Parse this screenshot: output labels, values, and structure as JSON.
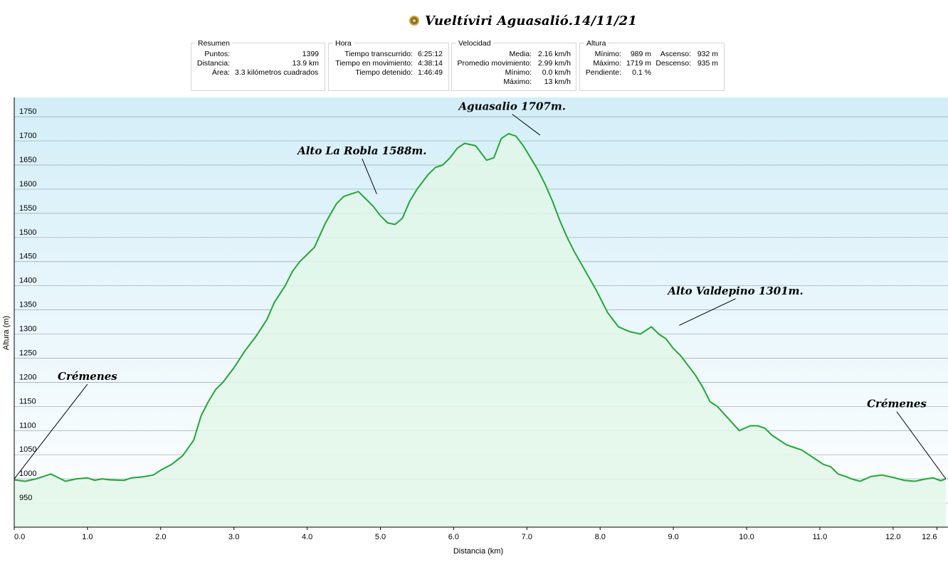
{
  "title": {
    "text": "Vueltíviri  Aguasalió.14/11/21",
    "icon": "track-icon"
  },
  "summary": {
    "resumen": {
      "legend": "Resumen",
      "puntos_label": "Puntos:",
      "puntos": "1399",
      "distancia_label": "Distancia:",
      "distancia": "13.9 km",
      "area_label": "Área:",
      "area": "3.3 kilómetros cuadrados"
    },
    "hora": {
      "legend": "Hora",
      "transcurrido_label": "Tiempo transcurrido:",
      "transcurrido": "6:25:12",
      "movimiento_label": "Tiempo en movimiento:",
      "movimiento": "4:38:14",
      "detenido_label": "Tiempo detenido:",
      "detenido": "1:46:49"
    },
    "velocidad": {
      "legend": "Velocidad",
      "media_label": "Media:",
      "media": "2.16 km/h",
      "promedio_label": "Promedio movimiento:",
      "promedio": "2.99 km/h",
      "minimo_label": "Mínimo:",
      "minimo": "0.0 km/h",
      "maximo_label": "Máximo:",
      "maximo": "13 km/h"
    },
    "altura": {
      "legend": "Altura",
      "minimo_label": "Mínimo:",
      "minimo": "989 m",
      "maximo_label": "Máximo:",
      "maximo": "1719 m",
      "pendiente_label": "Pendiente:",
      "pendiente": "0.1 %",
      "ascenso_label": "Ascenso:",
      "ascenso": "932 m",
      "descenso_label": "Descenso:",
      "descenso": "935 m"
    }
  },
  "chart_data": {
    "type": "area",
    "xlabel": "Distancia  (km)",
    "ylabel": "Altura (m)",
    "xlim": [
      0,
      12.75
    ],
    "ylim": [
      900,
      1790
    ],
    "xticks": [
      0.0,
      1.0,
      2.0,
      3.0,
      4.0,
      5.0,
      6.0,
      7.0,
      8.0,
      9.0,
      10.0,
      11.0,
      12.0,
      12.6
    ],
    "xtick_labels": [
      "0.0",
      "1.0",
      "2.0",
      "3.0",
      "4.0",
      "5.0",
      "6.0",
      "7.0",
      "8.0",
      "9.0",
      "10.0",
      "11.0",
      "12.0",
      "12.6"
    ],
    "yticks": [
      950,
      1000,
      1050,
      1100,
      1150,
      1200,
      1250,
      1300,
      1350,
      1400,
      1450,
      1500,
      1550,
      1600,
      1650,
      1700,
      1750
    ],
    "grid": true,
    "line_color": "#20a838",
    "fill_color": "#e2f7e7",
    "series": [
      {
        "x": [
          0.0,
          0.15,
          0.3,
          0.5,
          0.7,
          0.85,
          1.0,
          1.1,
          1.2,
          1.3,
          1.5,
          1.6,
          1.75,
          1.9,
          2.0,
          2.15,
          2.3,
          2.45,
          2.55,
          2.65,
          2.75,
          2.85,
          3.0,
          3.15,
          3.3,
          3.45,
          3.55,
          3.7,
          3.8,
          3.9,
          4.0,
          4.1,
          4.25,
          4.4,
          4.5,
          4.6,
          4.7,
          4.8,
          4.9,
          5.0,
          5.1,
          5.2,
          5.3,
          5.4,
          5.5,
          5.65,
          5.75,
          5.85,
          5.95,
          6.05,
          6.15,
          6.3,
          6.45,
          6.55,
          6.65,
          6.75,
          6.85,
          6.95,
          7.05,
          7.15,
          7.25,
          7.35,
          7.45,
          7.55,
          7.65,
          7.8,
          7.95,
          8.1,
          8.25,
          8.4,
          8.55,
          8.7,
          8.8,
          8.9,
          9.0,
          9.1,
          9.2,
          9.3,
          9.4,
          9.5,
          9.6,
          9.75,
          9.9,
          10.05,
          10.15,
          10.25,
          10.35,
          10.45,
          10.55,
          10.65,
          10.75,
          10.85,
          10.95,
          11.05,
          11.15,
          11.25,
          11.35,
          11.45,
          11.55,
          11.7,
          11.85,
          12.0,
          12.15,
          12.3,
          12.45,
          12.55,
          12.65,
          12.72
        ],
        "y": [
          998,
          995,
          1000,
          1010,
          995,
          1000,
          1002,
          997,
          1000,
          998,
          997,
          1002,
          1004,
          1008,
          1018,
          1030,
          1048,
          1080,
          1130,
          1160,
          1185,
          1200,
          1230,
          1265,
          1295,
          1330,
          1365,
          1400,
          1430,
          1450,
          1465,
          1480,
          1530,
          1570,
          1585,
          1590,
          1595,
          1580,
          1565,
          1545,
          1530,
          1527,
          1540,
          1575,
          1600,
          1630,
          1645,
          1650,
          1665,
          1685,
          1695,
          1690,
          1660,
          1665,
          1705,
          1715,
          1710,
          1690,
          1665,
          1640,
          1610,
          1575,
          1535,
          1500,
          1470,
          1430,
          1390,
          1345,
          1315,
          1305,
          1300,
          1315,
          1300,
          1290,
          1270,
          1255,
          1235,
          1215,
          1190,
          1160,
          1150,
          1125,
          1100,
          1110,
          1110,
          1105,
          1090,
          1080,
          1070,
          1065,
          1060,
          1050,
          1040,
          1030,
          1025,
          1010,
          1005,
          999,
          995,
          1005,
          1008,
          1003,
          997,
          995,
          1000,
          1002,
          996,
          1000
        ]
      }
    ],
    "annotations": [
      {
        "text": "Alto La Robla 1588m.",
        "x": 4.95,
        "y": 1590,
        "tx": 4.75,
        "ty": 1672
      },
      {
        "text": "Aguasalio 1707m.",
        "x": 7.18,
        "y": 1712,
        "tx": 6.8,
        "ty": 1764
      },
      {
        "text": "Alto Valdepino 1301m.",
        "x": 9.08,
        "y": 1318,
        "tx": 9.85,
        "ty": 1382
      },
      {
        "text": "Crémenes",
        "x": 0.0,
        "y": 1000,
        "tx": 1.0,
        "ty": 1205
      },
      {
        "text": "Crémenes",
        "x": 12.72,
        "y": 1000,
        "tx": 12.05,
        "ty": 1148
      }
    ]
  }
}
